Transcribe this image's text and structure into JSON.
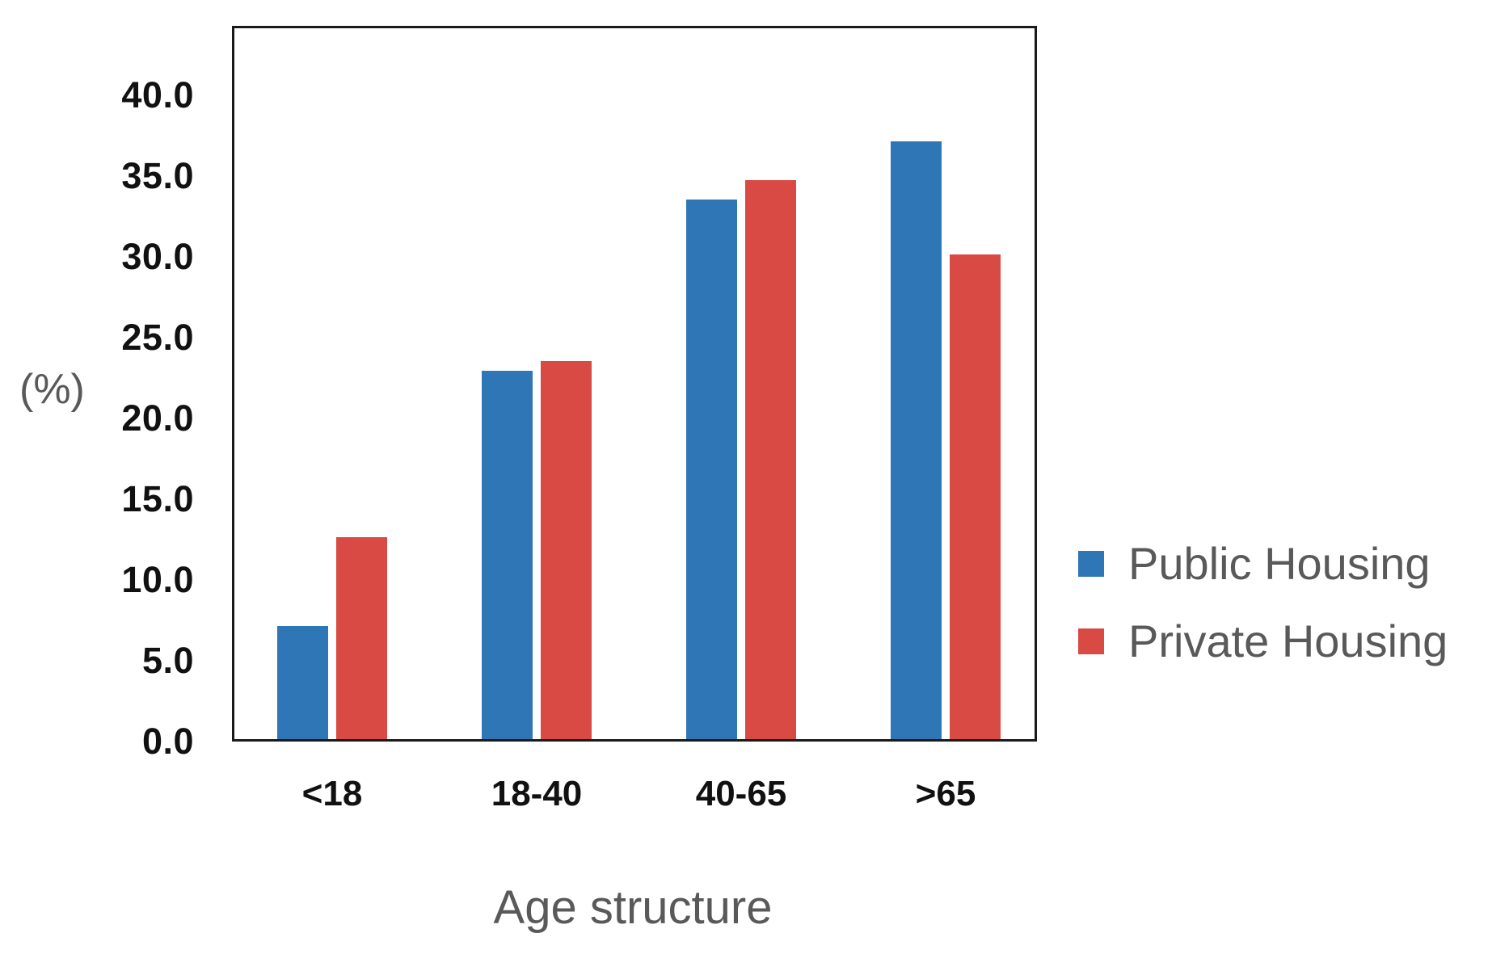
{
  "chart_data": {
    "type": "bar",
    "title": "",
    "categories": [
      "<18",
      "18-40",
      "40-65",
      ">65"
    ],
    "series": [
      {
        "name": "Public Housing",
        "color": "#2E76B6",
        "values": [
          7.0,
          22.8,
          33.4,
          37.0
        ]
      },
      {
        "name": "Private Housing",
        "color": "#D94A44",
        "values": [
          12.5,
          23.4,
          34.6,
          30.0
        ]
      }
    ],
    "xlabel": "Age structure",
    "ylabel": "(%)",
    "y_ticks": [
      0,
      5,
      10,
      15,
      20,
      25,
      30,
      35,
      40
    ],
    "y_tick_labels": [
      "0.0",
      "5.0",
      "10.0",
      "15.0",
      "20.0",
      "25.0",
      "30.0",
      "35.0",
      "40.0"
    ],
    "ylim": [
      0,
      44.3
    ],
    "grid": false,
    "legend_position": "right"
  },
  "colors": {
    "plot_border": "#1a1a1a",
    "tick_text": "#111111",
    "muted_text": "#595959",
    "background": "#ffffff"
  }
}
